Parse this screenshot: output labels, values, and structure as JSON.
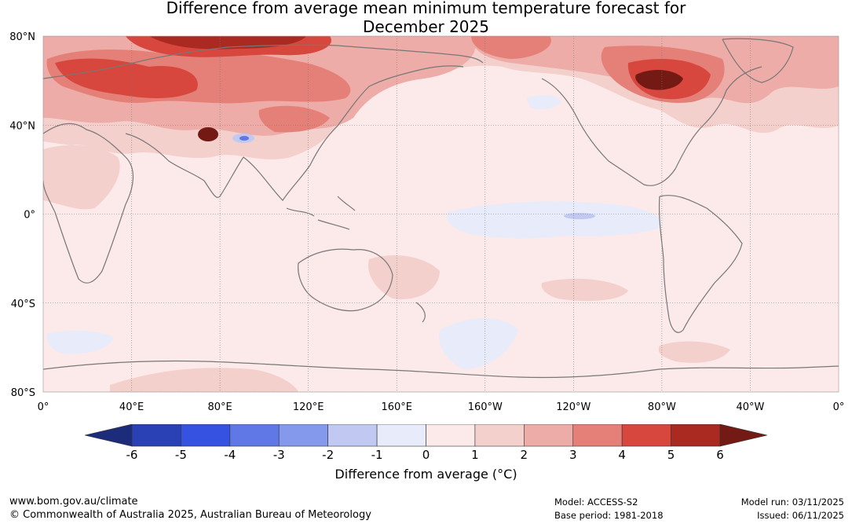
{
  "title": {
    "line1": "Difference from average mean minimum temperature forecast for",
    "line2": "December 2025"
  },
  "map": {
    "lat_labels": [
      "80°N",
      "40°N",
      "0°",
      "40°S",
      "80°S"
    ],
    "lat_values": [
      80,
      40,
      0,
      -40,
      -80
    ],
    "lon_labels": [
      "0°",
      "40°E",
      "80°E",
      "120°E",
      "160°E",
      "160°W",
      "120°W",
      "80°W",
      "40°W",
      "0°"
    ],
    "lon_values": [
      0,
      40,
      80,
      120,
      160,
      200,
      240,
      280,
      320,
      360
    ],
    "anomaly_regions": [
      {
        "name": "background-warm",
        "anomaly": "0 to 1"
      },
      {
        "name": "siberia",
        "anomaly": "3 to 6"
      },
      {
        "name": "hudson-bay",
        "anomaly": "4 to 6"
      },
      {
        "name": "tibet-warm",
        "anomaly": "5 to 6"
      },
      {
        "name": "tibet-cool",
        "anomaly": "-2 to -1"
      },
      {
        "name": "eastern-equatorial-pacific",
        "anomaly": "-1 to 0"
      },
      {
        "name": "southern-ocean-pacific",
        "anomaly": "-1 to 0"
      },
      {
        "name": "southern-ocean-atlantic",
        "anomaly": "-1 to 0"
      }
    ]
  },
  "colorbar": {
    "ticks": [
      "-6",
      "-5",
      "-4",
      "-3",
      "-2",
      "-1",
      "0",
      "1",
      "2",
      "3",
      "4",
      "5",
      "6"
    ],
    "colors": [
      "#1c2b7a",
      "#2a41b5",
      "#3552e0",
      "#5f78e6",
      "#8599ec",
      "#c1c9f3",
      "#e8ebfa",
      "#fbeae9",
      "#f4d0cd",
      "#edaca7",
      "#e58078",
      "#d7473d",
      "#aa2a22",
      "#741a14"
    ],
    "label": "Difference from average (°C)"
  },
  "footer": {
    "website": "www.bom.gov.au/climate",
    "copyright": "© Commonwealth of Australia 2025, Australian Bureau of Meteorology",
    "model": "Model: ACCESS-S2",
    "base_period": "Base period: 1981-2018",
    "model_run": "Model run: 03/11/2025",
    "issued": "Issued: 06/11/2025"
  }
}
